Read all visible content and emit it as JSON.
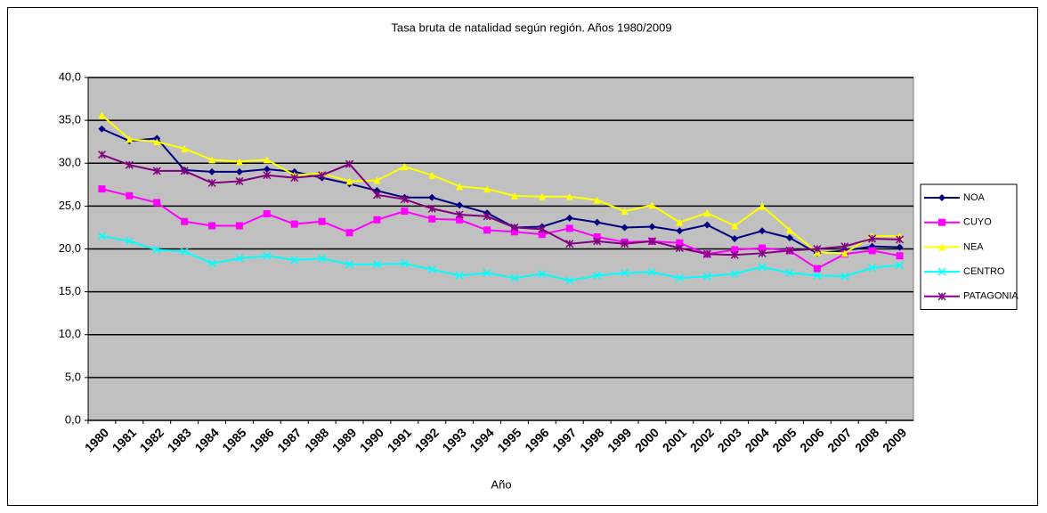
{
  "chart_data": {
    "type": "line",
    "title": "Tasa bruta de natalidad según región. Años 1980/2009",
    "x_label": "Año",
    "categories": [
      "1980",
      "1981",
      "1982",
      "1983",
      "1984",
      "1985",
      "1986",
      "1987",
      "1988",
      "1989",
      "1990",
      "1991",
      "1992",
      "1993",
      "1994",
      "1995",
      "1996",
      "1997",
      "1998",
      "1999",
      "2000",
      "2001",
      "2002",
      "2003",
      "2004",
      "2005",
      "2006",
      "2007",
      "2008",
      "2009"
    ],
    "series": [
      {
        "name": "NOA",
        "color": "#000080",
        "marker": "diamond",
        "values": [
          34.0,
          32.6,
          32.9,
          29.2,
          29.0,
          29.0,
          29.3,
          29.0,
          28.3,
          27.6,
          26.8,
          26.0,
          26.0,
          25.1,
          24.2,
          22.5,
          22.6,
          23.6,
          23.1,
          22.5,
          22.6,
          22.1,
          22.8,
          21.2,
          22.1,
          21.3,
          19.5,
          19.8,
          20.3,
          20.2
        ]
      },
      {
        "name": "CUYO",
        "color": "#ff00ff",
        "marker": "square",
        "values": [
          27.0,
          26.2,
          25.4,
          23.2,
          22.7,
          22.7,
          24.1,
          22.9,
          23.2,
          21.9,
          23.4,
          24.4,
          23.5,
          23.4,
          22.2,
          22.0,
          21.7,
          22.4,
          21.4,
          20.8,
          20.9,
          20.7,
          19.4,
          19.9,
          20.1,
          19.8,
          17.7,
          19.4,
          19.8,
          19.2
        ]
      },
      {
        "name": "NEA",
        "color": "#ffff00",
        "marker": "triangle",
        "values": [
          35.6,
          32.8,
          32.5,
          31.7,
          30.4,
          30.2,
          30.4,
          28.6,
          28.8,
          27.9,
          28.0,
          29.6,
          28.6,
          27.3,
          27.0,
          26.2,
          26.1,
          26.1,
          25.7,
          24.4,
          25.1,
          23.1,
          24.2,
          22.7,
          25.0,
          22.2,
          19.6,
          19.5,
          21.5,
          21.5
        ]
      },
      {
        "name": "CENTRO",
        "color": "#00ffff",
        "marker": "x",
        "values": [
          21.5,
          20.9,
          19.9,
          19.7,
          18.3,
          18.9,
          19.2,
          18.7,
          18.9,
          18.2,
          18.2,
          18.3,
          17.6,
          16.9,
          17.2,
          16.6,
          17.1,
          16.3,
          16.9,
          17.2,
          17.3,
          16.6,
          16.8,
          17.1,
          17.9,
          17.2,
          16.9,
          16.8,
          17.8,
          18.1
        ]
      },
      {
        "name": "PATAGONIA",
        "color": "#800080",
        "marker": "star",
        "values": [
          31.0,
          29.8,
          29.1,
          29.1,
          27.7,
          27.9,
          28.6,
          28.3,
          28.6,
          29.9,
          26.3,
          25.8,
          24.7,
          24.0,
          23.8,
          22.5,
          22.3,
          20.6,
          20.9,
          20.6,
          20.9,
          20.1,
          19.4,
          19.3,
          19.5,
          19.8,
          20.0,
          20.3,
          21.2,
          21.1
        ]
      }
    ],
    "ylim": [
      0,
      40
    ],
    "yticks": [
      {
        "value": 0,
        "label": "0,0"
      },
      {
        "value": 5,
        "label": "5,0"
      },
      {
        "value": 10,
        "label": "10,0"
      },
      {
        "value": 15,
        "label": "15,0"
      },
      {
        "value": 20,
        "label": "20,0"
      },
      {
        "value": 25,
        "label": "25,0"
      },
      {
        "value": 30,
        "label": "30,0"
      },
      {
        "value": 35,
        "label": "35,0"
      },
      {
        "value": 40,
        "label": "40,0"
      }
    ],
    "grid": true,
    "plot_background": "#c0c0c0",
    "legend": "right"
  }
}
